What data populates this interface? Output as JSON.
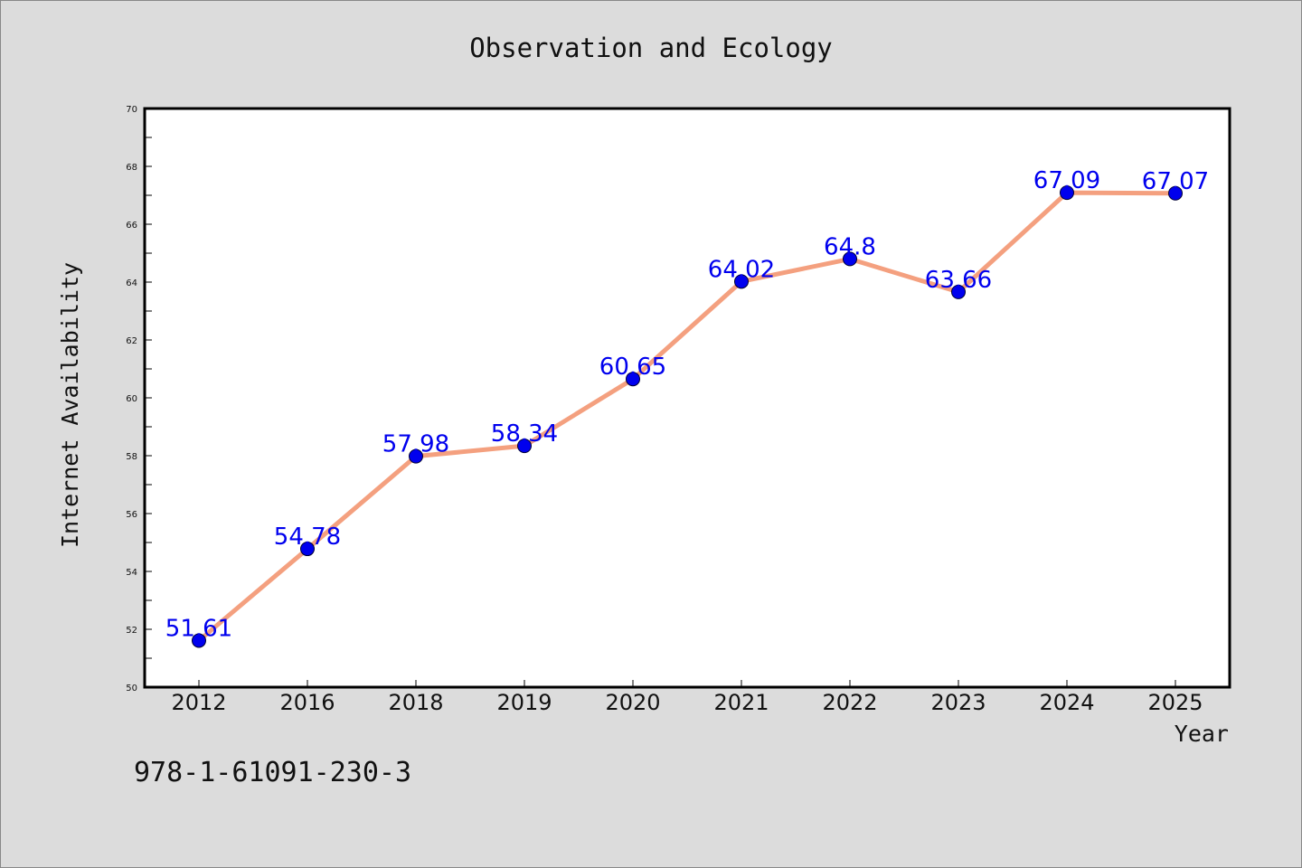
{
  "chart_data": {
    "type": "line",
    "title": "Observation and Ecology",
    "xlabel": "Year",
    "ylabel": "Internet Availability",
    "categories": [
      "2012",
      "2016",
      "2018",
      "2019",
      "2020",
      "2021",
      "2022",
      "2023",
      "2024",
      "2025"
    ],
    "series": [
      {
        "values": [
          51.61,
          54.78,
          57.98,
          58.34,
          60.65,
          64.02,
          64.8,
          63.66,
          67.09,
          67.07
        ]
      }
    ],
    "data_labels": [
      "51.61",
      "54.78",
      "57.98",
      "58.34",
      "60.65",
      "64.02",
      "64.8",
      "63.66",
      "67.09",
      "67.07"
    ],
    "ylim": [
      50,
      70
    ],
    "yticks": [
      "50",
      "52",
      "54",
      "56",
      "58",
      "60",
      "62",
      "64",
      "66",
      "68",
      "70"
    ],
    "grid": false,
    "line_color": "#f4a07f",
    "marker_color": "#0000ee"
  },
  "footer": {
    "code": "978-1-61091-230-3"
  }
}
